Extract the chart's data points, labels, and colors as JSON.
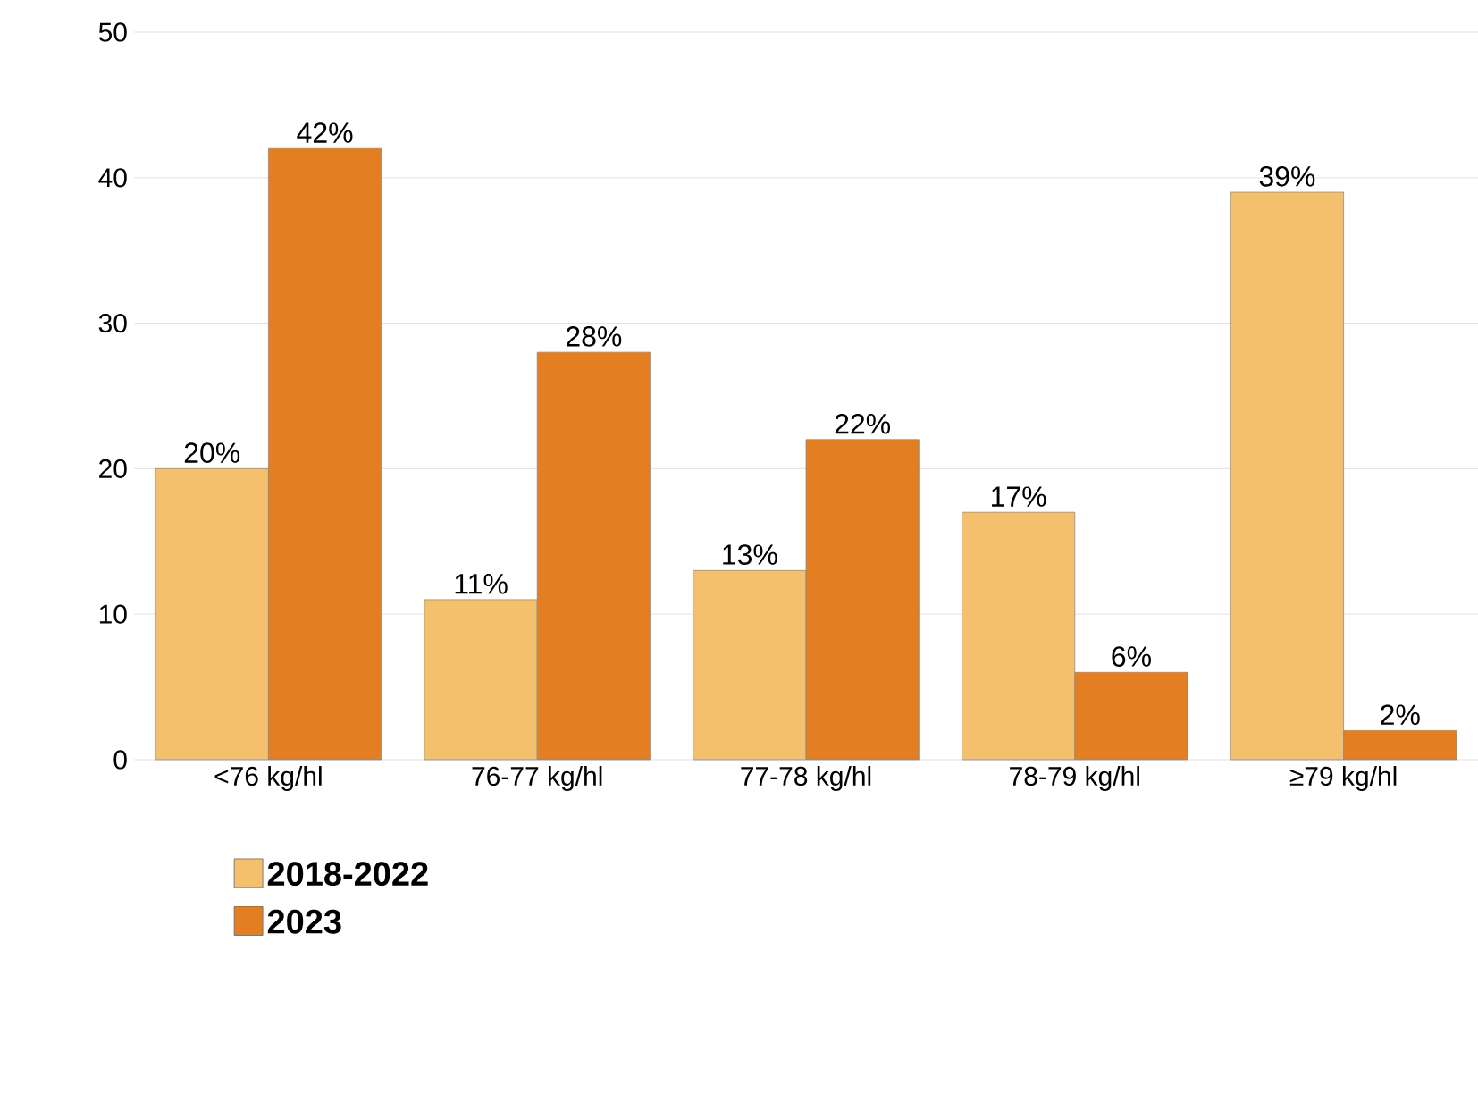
{
  "chart_data": {
    "type": "bar",
    "categories": [
      "<76 kg/hl",
      "76-77 kg/hl",
      "77-78 kg/hl",
      "78-79 kg/hl",
      "≥79 kg/hl"
    ],
    "series": [
      {
        "name": "2018-2022",
        "color": "#f5c06e",
        "values": [
          20,
          11,
          13,
          17,
          39
        ],
        "value_labels": [
          "20%",
          "11%",
          "13%",
          "17%",
          "39%"
        ]
      },
      {
        "name": "2023",
        "color": "#e37e22",
        "values": [
          42,
          28,
          22,
          6,
          2
        ],
        "value_labels": [
          "42%",
          "28%",
          "22%",
          "6%",
          "2%"
        ]
      }
    ],
    "ylim": [
      0,
      50
    ],
    "yticks": [
      0,
      10,
      20,
      30,
      40,
      50
    ],
    "grid": "y",
    "legend": "bottom left"
  }
}
